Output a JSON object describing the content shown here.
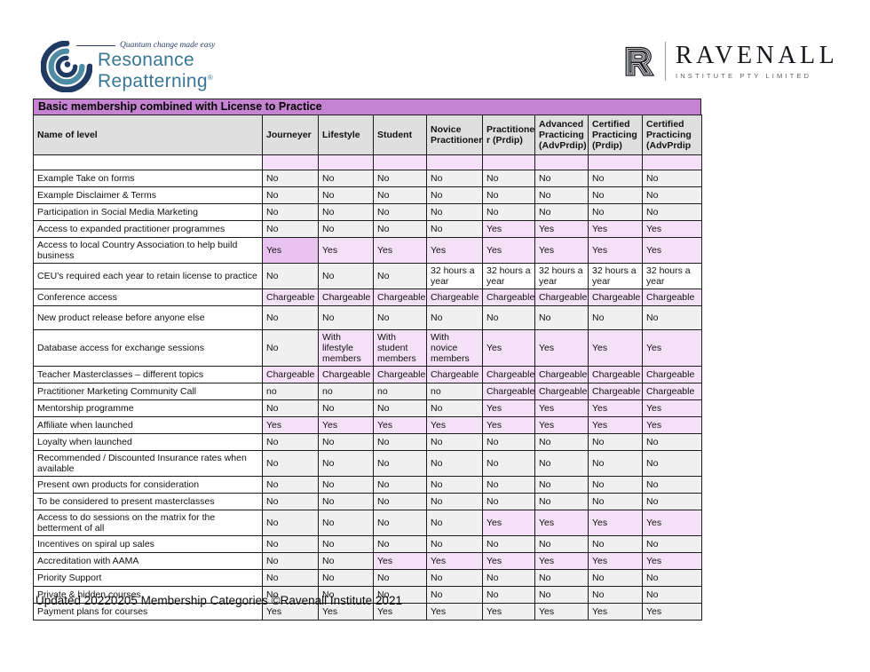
{
  "logos": {
    "resonance": {
      "tagline": "Quantum change made easy",
      "line1": "Resonance",
      "line2": "Repatterning",
      "registered_mark": "®",
      "wordmark_color": "#3b7693",
      "spiral_navy": "#1f3a63",
      "spiral_teal": "#4d8ca3"
    },
    "ravenall": {
      "mark_letter": "R",
      "name": "RAVENALL",
      "subtitle": "INSTITUTE PTY LIMITED"
    }
  },
  "table": {
    "title": "Basic membership combined with License to Practice",
    "palette": {
      "title_bg": "#c583d1",
      "header_bg": "#e0dfe0",
      "cell_gray": "#f1f0f1",
      "cell_purple": "#f5e1f7",
      "cell_purple_dark": "#e9c3ef",
      "border": "#1c1c1c"
    },
    "columns": [
      "Name of level",
      "Journeyer",
      "Lifestyle",
      "Student",
      "Novice Practitioner",
      "Practitione\nr (Prdip)",
      "Advanced Practicing (AdvPrdip)",
      "Certified Practicing (Prdip)",
      "Certified Practicing (AdvPrdip"
    ],
    "rows": [
      {
        "name": "",
        "values": [
          "",
          "",
          "",
          "",
          "",
          "",
          "",
          ""
        ],
        "styles": [
          "p",
          "p",
          "p",
          "p",
          "p",
          "p",
          "p",
          "p"
        ]
      },
      {
        "name": "Example Take on forms",
        "values": [
          "No",
          "No",
          "No",
          "No",
          "No",
          "No",
          "No",
          "No"
        ],
        "styles": [
          "g",
          "g",
          "g",
          "g",
          "g",
          "g",
          "g",
          "g"
        ]
      },
      {
        "name": "Example Disclaimer & Terms",
        "values": [
          "No",
          "No",
          "No",
          "No",
          "No",
          "No",
          "No",
          "No"
        ],
        "styles": [
          "g",
          "g",
          "g",
          "g",
          "g",
          "g",
          "g",
          "g"
        ]
      },
      {
        "name": "Participation in Social Media Marketing",
        "values": [
          "No",
          "No",
          "No",
          "No",
          "No",
          "No",
          "No",
          "No"
        ],
        "styles": [
          "g",
          "g",
          "g",
          "g",
          "g",
          "g",
          "g",
          "g"
        ]
      },
      {
        "name": "Access to expanded practitioner programmes",
        "values": [
          "No",
          "No",
          "No",
          "No",
          "Yes",
          "Yes",
          "Yes",
          "Yes"
        ],
        "styles": [
          "g",
          "g",
          "g",
          "g",
          "p",
          "p",
          "p",
          "p"
        ]
      },
      {
        "name": "Access to local Country Association to help build business",
        "values": [
          "Yes",
          "Yes",
          "Yes",
          "Yes",
          "Yes",
          "Yes",
          "Yes",
          "Yes"
        ],
        "styles": [
          "d",
          "p",
          "p",
          "p",
          "p",
          "p",
          "p",
          "p"
        ]
      },
      {
        "name": "CEU’s required each year to retain license to practice",
        "values": [
          "No",
          "No",
          "No",
          "32 hours a year",
          "32 hours a year",
          "32 hours a year",
          "32 hours a year",
          "32 hours a year"
        ],
        "styles": [
          "g",
          "g",
          "g",
          "w",
          "w",
          "w",
          "w",
          "w"
        ]
      },
      {
        "name": "Conference access",
        "values": [
          "Chargeable",
          "Chargeable",
          "Chargeable",
          "Chargeable",
          "Chargeable",
          "Chargeable",
          "Chargeable",
          "Chargeable"
        ],
        "styles": [
          "p",
          "p",
          "p",
          "p",
          "p",
          "p",
          "p",
          "p"
        ]
      },
      {
        "name": "New product release before anyone else",
        "values": [
          "No",
          "No",
          "No",
          "No",
          "No",
          "No",
          "No",
          "No"
        ],
        "styles": [
          "g",
          "g",
          "g",
          "g",
          "g",
          "g",
          "g",
          "g"
        ]
      },
      {
        "name": "Database access for exchange sessions",
        "values": [
          "No",
          "With lifestyle members",
          "With student members",
          "With novice members",
          "Yes",
          "Yes",
          "Yes",
          "Yes"
        ],
        "styles": [
          "g",
          "p",
          "p",
          "p",
          "p",
          "p",
          "p",
          "p"
        ]
      },
      {
        "name": "Teacher Masterclasses – different topics",
        "values": [
          "Chargeable",
          "Chargeable",
          "Chargeable",
          "Chargeable",
          "Chargeable",
          "Chargeable",
          "Chargeable",
          "Chargeable"
        ],
        "styles": [
          "p",
          "p",
          "p",
          "p",
          "p",
          "p",
          "p",
          "p"
        ]
      },
      {
        "name": "Practitioner Marketing Community Call",
        "values": [
          "no",
          "no",
          "no",
          "no",
          "Chargeable",
          "Chargeable",
          "Chargeable",
          "Chargeable"
        ],
        "styles": [
          "g",
          "g",
          "g",
          "g",
          "p",
          "p",
          "p",
          "p"
        ]
      },
      {
        "name": "Mentorship programme",
        "values": [
          "No",
          "No",
          "No",
          "No",
          "Yes",
          "Yes",
          "Yes",
          "Yes"
        ],
        "styles": [
          "g",
          "g",
          "g",
          "g",
          "p",
          "p",
          "p",
          "p"
        ]
      },
      {
        "name": "Affiliate when launched",
        "values": [
          "Yes",
          "Yes",
          "Yes",
          "Yes",
          "Yes",
          "Yes",
          "Yes",
          "Yes"
        ],
        "styles": [
          "p",
          "p",
          "p",
          "p",
          "p",
          "p",
          "p",
          "p"
        ]
      },
      {
        "name": "Loyalty when launched",
        "values": [
          "No",
          "No",
          "No",
          "No",
          "No",
          "No",
          "No",
          "No"
        ],
        "styles": [
          "g",
          "g",
          "g",
          "g",
          "g",
          "g",
          "g",
          "g"
        ]
      },
      {
        "name": "Recommended / Discounted Insurance rates when available",
        "values": [
          "No",
          "No",
          "No",
          "No",
          "No",
          "No",
          "No",
          "No"
        ],
        "styles": [
          "g",
          "g",
          "g",
          "g",
          "g",
          "g",
          "g",
          "g"
        ]
      },
      {
        "name": "Present own products for consideration",
        "values": [
          "No",
          "No",
          "No",
          "No",
          "No",
          "No",
          "No",
          "No"
        ],
        "styles": [
          "g",
          "g",
          "g",
          "g",
          "g",
          "g",
          "g",
          "g"
        ]
      },
      {
        "name": "To be considered to present masterclasses",
        "values": [
          "No",
          "No",
          "No",
          "No",
          "No",
          "No",
          "No",
          "No"
        ],
        "styles": [
          "g",
          "g",
          "g",
          "g",
          "g",
          "g",
          "g",
          "g"
        ]
      },
      {
        "name": "Access to do sessions on the matrix for the betterment of all",
        "values": [
          "No",
          "No",
          "No",
          "No",
          "Yes",
          "Yes",
          "Yes",
          "Yes"
        ],
        "styles": [
          "g",
          "g",
          "g",
          "g",
          "p",
          "p",
          "p",
          "p"
        ]
      },
      {
        "name": "Incentives on spiral up sales",
        "values": [
          "No",
          "No",
          "No",
          "No",
          "No",
          "No",
          "No",
          "No"
        ],
        "styles": [
          "g",
          "g",
          "g",
          "g",
          "g",
          "g",
          "g",
          "g"
        ]
      },
      {
        "name": "Accreditation with AAMA",
        "values": [
          "No",
          "No",
          "Yes",
          "Yes",
          "Yes",
          "Yes",
          "Yes",
          "Yes"
        ],
        "styles": [
          "g",
          "g",
          "p",
          "p",
          "p",
          "p",
          "p",
          "p"
        ]
      },
      {
        "name": "Priority Support",
        "values": [
          "No",
          "No",
          "No",
          "No",
          "No",
          "No",
          "No",
          "No"
        ],
        "styles": [
          "g",
          "g",
          "g",
          "g",
          "g",
          "g",
          "g",
          "g"
        ]
      },
      {
        "name": "Private & hidden courses",
        "values": [
          "No",
          "No",
          "No",
          "No",
          "No",
          "No",
          "No",
          "No"
        ],
        "styles": [
          "g",
          "g",
          "g",
          "g",
          "g",
          "g",
          "g",
          "g"
        ]
      },
      {
        "name": "Payment plans for courses",
        "values": [
          "Yes",
          "Yes",
          "Yes",
          "Yes",
          "Yes",
          "Yes",
          "Yes",
          "Yes"
        ],
        "styles": [
          "g",
          "g",
          "g",
          "g",
          "g",
          "g",
          "g",
          "g"
        ]
      }
    ]
  },
  "footer": {
    "text": "Updated 20220205 Membership Categories ©Ravenall Institute 2021"
  }
}
